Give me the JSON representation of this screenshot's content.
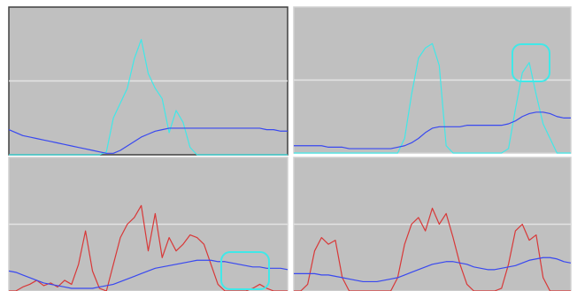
{
  "chart_data": [
    {
      "type": "line",
      "xlim": [
        0,
        40
      ],
      "ylim": [
        0,
        100
      ],
      "yticks": [
        50
      ],
      "grid": true,
      "show_tick_labels": false,
      "x": [
        0,
        1,
        2,
        3,
        4,
        5,
        6,
        7,
        8,
        9,
        10,
        11,
        12,
        13,
        14,
        15,
        16,
        17,
        18,
        19,
        20,
        21,
        22,
        23,
        24,
        25,
        26,
        27,
        28,
        29,
        30,
        31,
        32,
        33,
        34,
        35,
        36,
        37,
        38,
        39,
        40
      ],
      "series": [
        {
          "color": "#40e8e8",
          "values": [
            0,
            0,
            0,
            0,
            0,
            0,
            0,
            0,
            0,
            0,
            0,
            0,
            0,
            0,
            2,
            25,
            35,
            45,
            65,
            78,
            55,
            45,
            38,
            15,
            30,
            22,
            5,
            0,
            0,
            0,
            0,
            0,
            0,
            0,
            0,
            0,
            0,
            0,
            0,
            0,
            0
          ]
        },
        {
          "color": "#3848f0",
          "values": [
            17,
            15,
            13,
            12,
            11,
            10,
            9,
            8,
            7,
            6,
            5,
            4,
            3,
            2,
            1,
            1,
            3,
            6,
            9,
            12,
            14,
            16,
            17,
            18,
            18,
            18,
            18,
            18,
            18,
            18,
            18,
            18,
            18,
            18,
            18,
            18,
            18,
            17,
            17,
            16,
            16
          ]
        }
      ]
    },
    {
      "type": "line",
      "xlim": [
        0,
        40
      ],
      "ylim": [
        0,
        100
      ],
      "yticks": [
        50
      ],
      "grid": true,
      "show_tick_labels": false,
      "x": [
        0,
        1,
        2,
        3,
        4,
        5,
        6,
        7,
        8,
        9,
        10,
        11,
        12,
        13,
        14,
        15,
        16,
        17,
        18,
        19,
        20,
        21,
        22,
        23,
        24,
        25,
        26,
        27,
        28,
        29,
        30,
        31,
        32,
        33,
        34,
        35,
        36,
        37,
        38,
        39,
        40
      ],
      "series": [
        {
          "color": "#40e8e8",
          "values": [
            0,
            0,
            0,
            0,
            0,
            0,
            0,
            0,
            0,
            0,
            0,
            0,
            0,
            0,
            0,
            0,
            10,
            40,
            65,
            72,
            75,
            60,
            5,
            0,
            0,
            0,
            0,
            0,
            0,
            0,
            0,
            3,
            30,
            55,
            62,
            40,
            20,
            10,
            0,
            0,
            0
          ]
        },
        {
          "color": "#3848f0",
          "values": [
            5,
            5,
            5,
            5,
            5,
            4,
            4,
            4,
            3,
            3,
            3,
            3,
            3,
            3,
            3,
            4,
            5,
            7,
            10,
            14,
            17,
            18,
            18,
            18,
            18,
            19,
            19,
            19,
            19,
            19,
            19,
            20,
            22,
            25,
            27,
            28,
            28,
            27,
            25,
            24,
            24
          ]
        }
      ]
    },
    {
      "type": "line",
      "xlim": [
        0,
        40
      ],
      "ylim": [
        0,
        100
      ],
      "yticks": [
        50
      ],
      "grid": true,
      "show_tick_labels": false,
      "x": [
        0,
        1,
        2,
        3,
        4,
        5,
        6,
        7,
        8,
        9,
        10,
        11,
        12,
        13,
        14,
        15,
        16,
        17,
        18,
        19,
        20,
        21,
        22,
        23,
        24,
        25,
        26,
        27,
        28,
        29,
        30,
        31,
        32,
        33,
        34,
        35,
        36,
        37,
        38,
        39,
        40
      ],
      "series": [
        {
          "color": "#d83838",
          "values": [
            0,
            0,
            3,
            5,
            8,
            4,
            6,
            3,
            8,
            5,
            20,
            45,
            15,
            2,
            0,
            20,
            40,
            50,
            55,
            64,
            30,
            58,
            25,
            40,
            30,
            35,
            42,
            40,
            35,
            20,
            5,
            0,
            0,
            0,
            0,
            2,
            5,
            2,
            0,
            0,
            0
          ]
        },
        {
          "color": "#3848f0",
          "values": [
            15,
            14,
            12,
            10,
            8,
            6,
            5,
            4,
            3,
            2,
            2,
            2,
            2,
            3,
            4,
            5,
            7,
            9,
            11,
            13,
            15,
            17,
            18,
            19,
            20,
            21,
            22,
            23,
            23,
            23,
            22,
            22,
            21,
            20,
            19,
            18,
            18,
            17,
            17,
            17,
            16
          ]
        }
      ]
    },
    {
      "type": "line",
      "xlim": [
        0,
        40
      ],
      "ylim": [
        0,
        100
      ],
      "yticks": [
        50
      ],
      "grid": true,
      "show_tick_labels": false,
      "x": [
        0,
        1,
        2,
        3,
        4,
        5,
        6,
        7,
        8,
        9,
        10,
        11,
        12,
        13,
        14,
        15,
        16,
        17,
        18,
        19,
        20,
        21,
        22,
        23,
        24,
        25,
        26,
        27,
        28,
        29,
        30,
        31,
        32,
        33,
        34,
        35,
        36,
        37,
        38,
        39,
        40
      ],
      "series": [
        {
          "color": "#d83838",
          "values": [
            0,
            0,
            5,
            30,
            40,
            35,
            38,
            10,
            0,
            0,
            0,
            0,
            0,
            0,
            0,
            10,
            35,
            50,
            55,
            45,
            62,
            50,
            58,
            40,
            20,
            5,
            0,
            0,
            0,
            0,
            2,
            20,
            45,
            50,
            38,
            42,
            10,
            0,
            0,
            0,
            0
          ]
        },
        {
          "color": "#3848f0",
          "values": [
            13,
            13,
            13,
            13,
            12,
            12,
            11,
            10,
            9,
            8,
            7,
            7,
            7,
            8,
            9,
            10,
            12,
            14,
            16,
            18,
            20,
            21,
            22,
            22,
            21,
            20,
            18,
            17,
            16,
            16,
            17,
            18,
            19,
            21,
            23,
            24,
            25,
            25,
            24,
            22,
            21
          ]
        }
      ]
    }
  ]
}
